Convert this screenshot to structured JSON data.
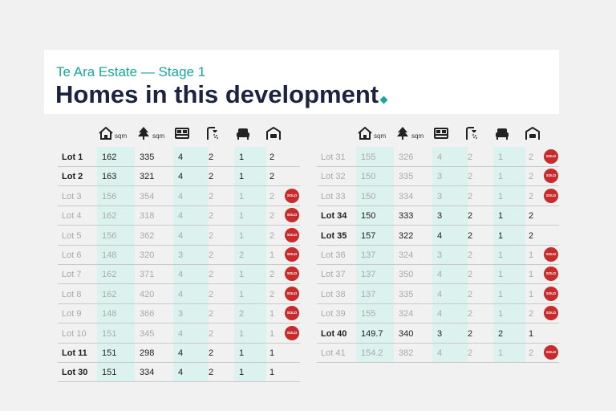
{
  "header": {
    "subtitle": "Te Ara Estate — Stage 1",
    "title": "Homes in this development"
  },
  "tables": [
    {
      "units": [
        "sqm",
        "sqm"
      ],
      "rows": [
        {
          "lot": "Lot 1",
          "values": [
            162,
            335,
            4,
            2,
            1,
            2
          ]
        },
        {
          "lot": "Lot 2",
          "values": [
            163,
            321,
            4,
            2,
            1,
            2
          ]
        },
        {
          "lot": "Lot 3",
          "values": [
            156,
            354,
            4,
            2,
            1,
            2
          ],
          "status": "SOLD"
        },
        {
          "lot": "Lot 4",
          "values": [
            162,
            318,
            4,
            2,
            1,
            2
          ],
          "status": "SOLD"
        },
        {
          "lot": "Lot 5",
          "values": [
            156,
            362,
            4,
            2,
            1,
            2
          ],
          "status": "SOLD"
        },
        {
          "lot": "Lot 6",
          "values": [
            148,
            320,
            3,
            2,
            2,
            1
          ],
          "status": "SOLD"
        },
        {
          "lot": "Lot 7",
          "values": [
            162,
            371,
            4,
            2,
            1,
            2
          ],
          "status": "SOLD"
        },
        {
          "lot": "Lot 8",
          "values": [
            162,
            420,
            4,
            2,
            1,
            2
          ],
          "status": "SOLD"
        },
        {
          "lot": "Lot 9",
          "values": [
            148,
            366,
            3,
            2,
            2,
            1
          ],
          "status": "SOLD"
        },
        {
          "lot": "Lot 10",
          "values": [
            151,
            345,
            4,
            2,
            1,
            1
          ],
          "status": "SOLD"
        },
        {
          "lot": "Lot 11",
          "values": [
            151,
            298,
            4,
            2,
            1,
            1
          ]
        },
        {
          "lot": "Lot 30",
          "values": [
            151,
            334,
            4,
            2,
            1,
            1
          ]
        }
      ]
    },
    {
      "units": [
        "sqm",
        "sqm"
      ],
      "rows": [
        {
          "lot": "Lot 31",
          "values": [
            155,
            326,
            4,
            2,
            1,
            2
          ],
          "status": "SOLD"
        },
        {
          "lot": "Lot 32",
          "values": [
            150,
            335,
            3,
            2,
            1,
            2
          ],
          "status": "SOLD"
        },
        {
          "lot": "Lot 33",
          "values": [
            150,
            334,
            3,
            2,
            1,
            2
          ],
          "status": "SOLD"
        },
        {
          "lot": "Lot 34",
          "values": [
            150,
            333,
            3,
            2,
            1,
            2
          ]
        },
        {
          "lot": "Lot 35",
          "values": [
            157,
            322,
            4,
            2,
            1,
            2
          ]
        },
        {
          "lot": "Lot 36",
          "values": [
            137,
            324,
            3,
            2,
            1,
            1
          ],
          "status": "SOLD"
        },
        {
          "lot": "Lot 37",
          "values": [
            137,
            350,
            4,
            2,
            1,
            1
          ],
          "status": "SOLD"
        },
        {
          "lot": "Lot 38",
          "values": [
            137,
            335,
            4,
            2,
            1,
            1
          ],
          "status": "SOLD"
        },
        {
          "lot": "Lot 39",
          "values": [
            155,
            324,
            4,
            2,
            1,
            2
          ],
          "status": "SOLD"
        },
        {
          "lot": "Lot 40",
          "values": [
            149.7,
            340,
            3,
            2,
            2,
            1
          ]
        },
        {
          "lot": "Lot 41",
          "values": [
            154.2,
            382,
            4,
            2,
            1,
            2
          ],
          "status": "SOLD"
        }
      ]
    }
  ]
}
